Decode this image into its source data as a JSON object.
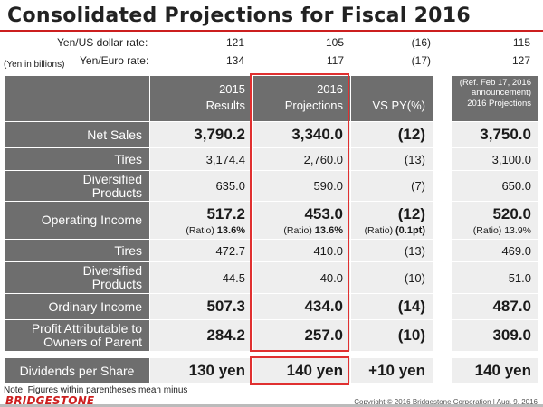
{
  "title": "Consolidated Projections for Fiscal 2016",
  "rates": {
    "usd_label": "Yen/US dollar rate:",
    "usd": [
      "121",
      "105",
      "(16)",
      "115"
    ],
    "eur_label": "Yen/Euro rate:",
    "eur": [
      "134",
      "117",
      "(17)",
      "127"
    ],
    "unit": "(Yen in billions)"
  },
  "headers": {
    "col1_line1": "2015",
    "col1_line2": "Results",
    "col2_line1": "2016",
    "col2_line2": "Projections",
    "col3": "VS PY(%)",
    "col4_line1": "(Ref.  Feb 17, 2016",
    "col4_line2": "announcement)",
    "col4_line3": "2016 Projections"
  },
  "rows": {
    "net_sales": {
      "label": "Net Sales",
      "v": [
        "3,790.2",
        "3,340.0",
        "(12)",
        "3,750.0"
      ]
    },
    "tires1": {
      "label": "Tires",
      "v": [
        "3,174.4",
        "2,760.0",
        "(13)",
        "3,100.0"
      ]
    },
    "div1": {
      "label1": "Diversified",
      "label2": "Products",
      "v": [
        "635.0",
        "590.0",
        "(7)",
        "650.0"
      ]
    },
    "op_income": {
      "label": "Operating Income",
      "v": [
        "517.2",
        "453.0",
        "(12)",
        "520.0"
      ],
      "ratio_label": "(Ratio)",
      "ratios": [
        "13.6%",
        "13.6%",
        "(0.1pt)",
        "13.9%"
      ]
    },
    "tires2": {
      "label": "Tires",
      "v": [
        "472.7",
        "410.0",
        "(13)",
        "469.0"
      ]
    },
    "div2": {
      "label1": "Diversified",
      "label2": "Products",
      "v": [
        "44.5",
        "40.0",
        "(10)",
        "51.0"
      ]
    },
    "ord_income": {
      "label": "Ordinary Income",
      "v": [
        "507.3",
        "434.0",
        "(14)",
        "487.0"
      ]
    },
    "profit": {
      "label1": "Profit Attributable to",
      "label2": "Owners of Parent",
      "v": [
        "284.2",
        "257.0",
        "(10)",
        "309.0"
      ]
    },
    "dividends": {
      "label": "Dividends per Share",
      "v": [
        "130 yen",
        "140 yen",
        "+10 yen",
        "140 yen"
      ]
    }
  },
  "footnote": "Note: Figures within parentheses mean minus",
  "logo": "BRIDGESTONE",
  "copyright": "Copyright © 2016 Bridgestone Corporation  |  Aug. 9, 2016",
  "colors": {
    "accent": "#cc1f1f",
    "label_bg": "#6e6e6e",
    "value_bg": "#eeeeee"
  }
}
